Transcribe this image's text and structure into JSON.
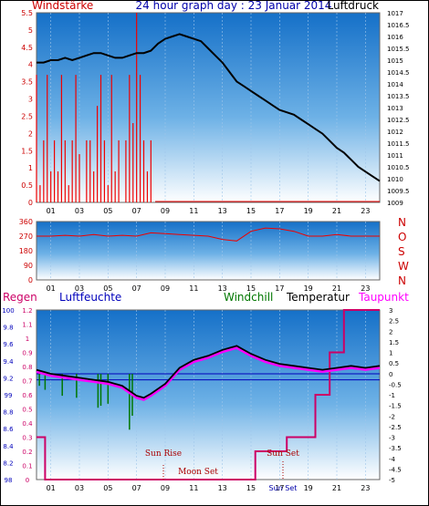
{
  "header": {
    "left_title": "Windstärke",
    "center_title": "24 hour graph day : 23 Januar 2014",
    "right_title": "Luftdruck"
  },
  "colors": {
    "wind": "#ee0000",
    "pressure": "#000000",
    "temperature": "#000000",
    "dewpoint": "#ff00ff",
    "windchill": "#007700",
    "humidity": "#0000bb",
    "rain": "#cc0066",
    "sky_top": "#1773c9",
    "sky_bottom": "#ffffff"
  },
  "x_ticks": [
    "01",
    "03",
    "05",
    "07",
    "09",
    "11",
    "13",
    "15",
    "17",
    "19",
    "21",
    "23"
  ],
  "direction_letters": [
    "N",
    "W",
    "S",
    "O",
    "N"
  ],
  "bottom_legend": {
    "rain": "Regen",
    "humidity": "Luftfeuchte",
    "windchill": "Windchill",
    "temperature": "Temperatur",
    "dewpoint": "Taupunkt"
  },
  "events": {
    "sunrise": "Sun Rise",
    "moonset": "Moon Set",
    "sunset": "Sun Set",
    "sunset_tick": "Sun Set"
  },
  "chart_data": [
    {
      "type": "line",
      "name": "wind-pressure",
      "title": "24 hour graph day : 23 Januar 2014",
      "x_unit": "hour",
      "xlim": [
        0,
        24
      ],
      "y_left": {
        "label": "Windstärke",
        "ticks": [
          "0",
          "0.5",
          "1",
          "1.5",
          "2",
          "2.5",
          "3",
          "3.5",
          "4",
          "4.5",
          "5",
          "5.5"
        ],
        "ylim": [
          0,
          5.5
        ]
      },
      "y_right": {
        "label": "Luftdruck",
        "ticks": [
          "1009",
          "1009.5",
          "1010",
          "1010.5",
          "1011",
          "1011.5",
          "1012",
          "1012.5",
          "1013",
          "1013.5",
          "1014",
          "1014.5",
          "1015",
          "1015.5",
          "1016",
          "1016.5",
          "1017"
        ],
        "ylim": [
          1009,
          1017
        ]
      },
      "series": [
        {
          "name": "Luftdruck",
          "x": [
            0,
            0.5,
            1,
            1.5,
            2,
            2.5,
            3,
            3.5,
            4,
            4.5,
            5,
            5.5,
            6,
            6.5,
            7,
            7.5,
            8,
            8.5,
            9,
            9.5,
            10,
            10.5,
            11,
            11.5,
            12,
            12.5,
            13,
            13.5,
            14,
            14.5,
            15,
            15.5,
            16,
            16.5,
            17,
            17.5,
            18,
            18.5,
            19,
            19.5,
            20,
            20.5,
            21,
            21.5,
            22,
            22.5,
            23,
            23.5,
            24
          ],
          "values": [
            1014.9,
            1014.9,
            1015.0,
            1015.0,
            1015.1,
            1015.0,
            1015.1,
            1015.2,
            1015.3,
            1015.3,
            1015.2,
            1015.1,
            1015.1,
            1015.2,
            1015.3,
            1015.3,
            1015.4,
            1015.7,
            1015.9,
            1016.0,
            1016.1,
            1016.0,
            1015.9,
            1015.8,
            1015.5,
            1015.2,
            1014.9,
            1014.5,
            1014.1,
            1013.9,
            1013.7,
            1013.5,
            1013.3,
            1013.1,
            1012.9,
            1012.8,
            1012.7,
            1012.5,
            1012.3,
            1012.1,
            1011.9,
            1011.6,
            1011.3,
            1011.1,
            1010.8,
            1010.5,
            1010.3,
            1010.1,
            1009.9
          ]
        },
        {
          "name": "Windstärke",
          "x": [
            0.0,
            0.25,
            0.5,
            0.75,
            1.0,
            1.25,
            1.5,
            1.75,
            2.0,
            2.25,
            2.5,
            2.75,
            3.0,
            3.25,
            3.5,
            3.75,
            4.0,
            4.25,
            4.5,
            4.75,
            5.0,
            5.25,
            5.5,
            5.75,
            6.0,
            6.25,
            6.5,
            6.75,
            7.0,
            7.25,
            7.5,
            7.75,
            8.0,
            8.25
          ],
          "values": [
            3.7,
            0.5,
            1.8,
            3.7,
            0.9,
            1.8,
            0.9,
            3.7,
            1.8,
            0.5,
            1.8,
            3.7,
            1.4,
            0.0,
            1.8,
            1.8,
            0.9,
            2.8,
            3.7,
            1.8,
            0.5,
            3.7,
            0.9,
            1.8,
            0.0,
            1.8,
            3.7,
            2.3,
            5.5,
            3.7,
            1.8,
            0.9,
            1.8,
            0.0
          ]
        }
      ]
    },
    {
      "type": "line",
      "name": "wind-direction",
      "xlim": [
        0,
        24
      ],
      "y_left": {
        "ticks": [
          "0",
          "90",
          "180",
          "270",
          "360"
        ],
        "ylim": [
          0,
          360
        ]
      },
      "y_right": {
        "ticks": [
          "N",
          "W",
          "S",
          "O",
          "N"
        ]
      },
      "series": [
        {
          "name": "Windrichtung",
          "x": [
            0,
            1,
            2,
            3,
            4,
            5,
            6,
            7,
            8,
            9,
            10,
            11,
            12,
            13,
            14,
            15,
            16,
            17,
            18,
            19,
            20,
            21,
            22,
            23,
            24
          ],
          "values": [
            270,
            270,
            275,
            270,
            280,
            270,
            275,
            270,
            290,
            285,
            280,
            275,
            270,
            250,
            240,
            300,
            320,
            315,
            300,
            270,
            270,
            280,
            270,
            270,
            270
          ]
        }
      ]
    },
    {
      "type": "line",
      "name": "humidity-temperature",
      "xlim": [
        0,
        24
      ],
      "y_left_rain": {
        "label": "Regen",
        "ticks": [
          "0",
          "0.1",
          "0.2",
          "0.3",
          "0.4",
          "0.5",
          "0.6",
          "0.7",
          "0.8",
          "0.9",
          "1",
          "1.1",
          "1.2"
        ],
        "ylim": [
          0,
          1.2
        ]
      },
      "y_left_humidity": {
        "label": "Luftfeuchte",
        "ticks": [
          "98",
          "8.2",
          "8.4",
          "8.6",
          "8.8",
          "99",
          "9.2",
          "9.4",
          "9.6",
          "9.8",
          "100"
        ],
        "ylim": [
          98,
          100
        ]
      },
      "y_right": {
        "label": "Temperatur",
        "ticks": [
          "-5",
          "-4.5",
          "-4",
          "-3.5",
          "-3",
          "-2.5",
          "-2",
          "-1.5",
          "-1",
          "-0.5",
          "0",
          "0.5",
          "1",
          "1.5",
          "2",
          "2.5",
          "3"
        ],
        "ylim": [
          -5,
          3.5
        ]
      },
      "series": [
        {
          "name": "Temperatur",
          "x": [
            0,
            1,
            2,
            3,
            4,
            5,
            6,
            7,
            7.5,
            8,
            9,
            10,
            11,
            12,
            13,
            14,
            15,
            16,
            17,
            18,
            19,
            20,
            21,
            22,
            23,
            24
          ],
          "values": [
            0.5,
            0.3,
            0.2,
            0.1,
            0.0,
            -0.1,
            -0.3,
            -0.8,
            -0.9,
            -0.7,
            -0.2,
            0.6,
            1.0,
            1.2,
            1.5,
            1.7,
            1.3,
            1.0,
            0.8,
            0.7,
            0.6,
            0.5,
            0.6,
            0.7,
            0.6,
            0.7
          ]
        },
        {
          "name": "Taupunkt",
          "x": [
            0,
            1,
            2,
            3,
            4,
            5,
            6,
            7,
            7.5,
            8,
            9,
            10,
            11,
            12,
            13,
            14,
            15,
            16,
            17,
            18,
            19,
            20,
            21,
            22,
            23,
            24
          ],
          "values": [
            0.4,
            0.2,
            0.1,
            0.0,
            -0.1,
            -0.2,
            -0.4,
            -0.9,
            -1.0,
            -0.8,
            -0.3,
            0.5,
            0.9,
            1.1,
            1.4,
            1.6,
            1.2,
            0.9,
            0.7,
            0.6,
            0.5,
            0.4,
            0.5,
            0.6,
            0.5,
            0.6
          ]
        },
        {
          "name": "Windchill",
          "x": [
            0.2,
            0.6,
            1.8,
            2.8,
            4.3,
            4.5,
            5.0,
            6.5,
            6.7
          ],
          "values": [
            -0.3,
            -0.5,
            -0.8,
            -0.9,
            -1.4,
            -1.3,
            -1.2,
            -2.5,
            -1.8
          ]
        },
        {
          "name": "Luftfeuchte",
          "x": [
            0,
            24
          ],
          "values": [
            99,
            99
          ]
        },
        {
          "name": "Regen",
          "x": [
            0,
            0.6,
            0.6,
            15.3,
            15.3,
            17.5,
            17.5,
            19.5,
            19.5,
            20.5,
            20.5,
            21.5,
            21.5,
            24
          ],
          "values": [
            0.3,
            0.3,
            0,
            0,
            0.2,
            0.2,
            0.3,
            0.3,
            0.6,
            0.6,
            0.9,
            0.9,
            1.2,
            1.2
          ]
        }
      ]
    }
  ]
}
